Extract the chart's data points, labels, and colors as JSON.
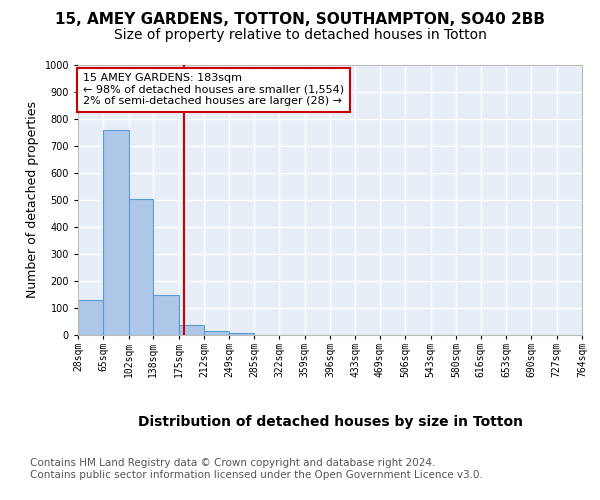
{
  "title_line1": "15, AMEY GARDENS, TOTTON, SOUTHAMPTON, SO40 2BB",
  "title_line2": "Size of property relative to detached houses in Totton",
  "xlabel": "Distribution of detached houses by size in Totton",
  "ylabel": "Number of detached properties",
  "footer_line1": "Contains HM Land Registry data © Crown copyright and database right 2024.",
  "footer_line2": "Contains public sector information licensed under the Open Government Licence v3.0.",
  "bar_edges": [
    28,
    65,
    102,
    138,
    175,
    212,
    249,
    285,
    322,
    359,
    396,
    433,
    469,
    506,
    543,
    580,
    616,
    653,
    690,
    727,
    764
  ],
  "bar_heights": [
    128,
    760,
    505,
    150,
    37,
    15,
    8,
    0,
    0,
    0,
    0,
    0,
    0,
    0,
    0,
    0,
    0,
    0,
    0,
    0
  ],
  "bar_color": "#aec6e8",
  "bar_edge_color": "#5b9bd5",
  "vline_x": 183,
  "vline_color": "#cc0000",
  "annotation_text": "15 AMEY GARDENS: 183sqm\n← 98% of detached houses are smaller (1,554)\n2% of semi-detached houses are larger (28) →",
  "annotation_box_color": "#cc0000",
  "ylim": [
    0,
    1000
  ],
  "yticks": [
    0,
    100,
    200,
    300,
    400,
    500,
    600,
    700,
    800,
    900,
    1000
  ],
  "background_color": "#e8eef8",
  "grid_color": "#ffffff",
  "title_fontsize": 11,
  "subtitle_fontsize": 10,
  "xlabel_fontsize": 10,
  "ylabel_fontsize": 9,
  "tick_fontsize": 7,
  "annotation_fontsize": 8,
  "footer_fontsize": 7.5
}
